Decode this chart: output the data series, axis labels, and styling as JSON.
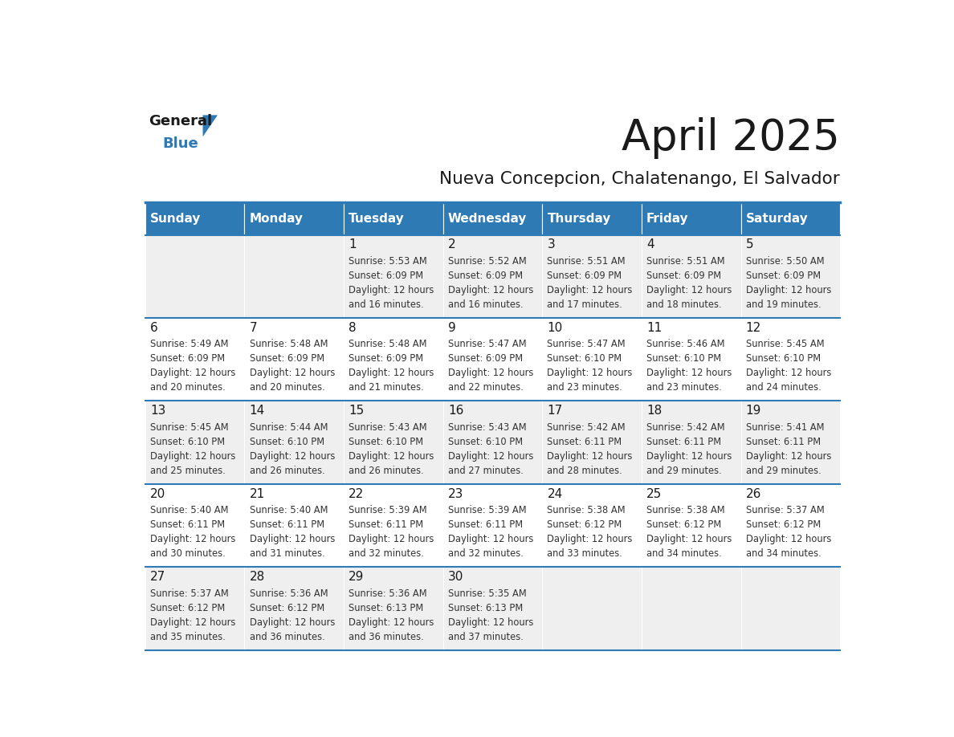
{
  "title": "April 2025",
  "subtitle": "Nueva Concepcion, Chalatenango, El Salvador",
  "header_bg_color": "#2E7AB5",
  "header_text_color": "#FFFFFF",
  "title_color": "#1a1a1a",
  "subtitle_color": "#1a1a1a",
  "grid_line_color": "#2E7AB5",
  "day_number_color": "#1a1a1a",
  "cell_text_color": "#333333",
  "days_of_week": [
    "Sunday",
    "Monday",
    "Tuesday",
    "Wednesday",
    "Thursday",
    "Friday",
    "Saturday"
  ],
  "weeks": [
    [
      {
        "day": "",
        "sunrise": "",
        "sunset": "",
        "daylight_line1": "",
        "daylight_line2": ""
      },
      {
        "day": "",
        "sunrise": "",
        "sunset": "",
        "daylight_line1": "",
        "daylight_line2": ""
      },
      {
        "day": "1",
        "sunrise": "5:53 AM",
        "sunset": "6:09 PM",
        "daylight_line1": "12 hours",
        "daylight_line2": "and 16 minutes."
      },
      {
        "day": "2",
        "sunrise": "5:52 AM",
        "sunset": "6:09 PM",
        "daylight_line1": "12 hours",
        "daylight_line2": "and 16 minutes."
      },
      {
        "day": "3",
        "sunrise": "5:51 AM",
        "sunset": "6:09 PM",
        "daylight_line1": "12 hours",
        "daylight_line2": "and 17 minutes."
      },
      {
        "day": "4",
        "sunrise": "5:51 AM",
        "sunset": "6:09 PM",
        "daylight_line1": "12 hours",
        "daylight_line2": "and 18 minutes."
      },
      {
        "day": "5",
        "sunrise": "5:50 AM",
        "sunset": "6:09 PM",
        "daylight_line1": "12 hours",
        "daylight_line2": "and 19 minutes."
      }
    ],
    [
      {
        "day": "6",
        "sunrise": "5:49 AM",
        "sunset": "6:09 PM",
        "daylight_line1": "12 hours",
        "daylight_line2": "and 20 minutes."
      },
      {
        "day": "7",
        "sunrise": "5:48 AM",
        "sunset": "6:09 PM",
        "daylight_line1": "12 hours",
        "daylight_line2": "and 20 minutes."
      },
      {
        "day": "8",
        "sunrise": "5:48 AM",
        "sunset": "6:09 PM",
        "daylight_line1": "12 hours",
        "daylight_line2": "and 21 minutes."
      },
      {
        "day": "9",
        "sunrise": "5:47 AM",
        "sunset": "6:09 PM",
        "daylight_line1": "12 hours",
        "daylight_line2": "and 22 minutes."
      },
      {
        "day": "10",
        "sunrise": "5:47 AM",
        "sunset": "6:10 PM",
        "daylight_line1": "12 hours",
        "daylight_line2": "and 23 minutes."
      },
      {
        "day": "11",
        "sunrise": "5:46 AM",
        "sunset": "6:10 PM",
        "daylight_line1": "12 hours",
        "daylight_line2": "and 23 minutes."
      },
      {
        "day": "12",
        "sunrise": "5:45 AM",
        "sunset": "6:10 PM",
        "daylight_line1": "12 hours",
        "daylight_line2": "and 24 minutes."
      }
    ],
    [
      {
        "day": "13",
        "sunrise": "5:45 AM",
        "sunset": "6:10 PM",
        "daylight_line1": "12 hours",
        "daylight_line2": "and 25 minutes."
      },
      {
        "day": "14",
        "sunrise": "5:44 AM",
        "sunset": "6:10 PM",
        "daylight_line1": "12 hours",
        "daylight_line2": "and 26 minutes."
      },
      {
        "day": "15",
        "sunrise": "5:43 AM",
        "sunset": "6:10 PM",
        "daylight_line1": "12 hours",
        "daylight_line2": "and 26 minutes."
      },
      {
        "day": "16",
        "sunrise": "5:43 AM",
        "sunset": "6:10 PM",
        "daylight_line1": "12 hours",
        "daylight_line2": "and 27 minutes."
      },
      {
        "day": "17",
        "sunrise": "5:42 AM",
        "sunset": "6:11 PM",
        "daylight_line1": "12 hours",
        "daylight_line2": "and 28 minutes."
      },
      {
        "day": "18",
        "sunrise": "5:42 AM",
        "sunset": "6:11 PM",
        "daylight_line1": "12 hours",
        "daylight_line2": "and 29 minutes."
      },
      {
        "day": "19",
        "sunrise": "5:41 AM",
        "sunset": "6:11 PM",
        "daylight_line1": "12 hours",
        "daylight_line2": "and 29 minutes."
      }
    ],
    [
      {
        "day": "20",
        "sunrise": "5:40 AM",
        "sunset": "6:11 PM",
        "daylight_line1": "12 hours",
        "daylight_line2": "and 30 minutes."
      },
      {
        "day": "21",
        "sunrise": "5:40 AM",
        "sunset": "6:11 PM",
        "daylight_line1": "12 hours",
        "daylight_line2": "and 31 minutes."
      },
      {
        "day": "22",
        "sunrise": "5:39 AM",
        "sunset": "6:11 PM",
        "daylight_line1": "12 hours",
        "daylight_line2": "and 32 minutes."
      },
      {
        "day": "23",
        "sunrise": "5:39 AM",
        "sunset": "6:11 PM",
        "daylight_line1": "12 hours",
        "daylight_line2": "and 32 minutes."
      },
      {
        "day": "24",
        "sunrise": "5:38 AM",
        "sunset": "6:12 PM",
        "daylight_line1": "12 hours",
        "daylight_line2": "and 33 minutes."
      },
      {
        "day": "25",
        "sunrise": "5:38 AM",
        "sunset": "6:12 PM",
        "daylight_line1": "12 hours",
        "daylight_line2": "and 34 minutes."
      },
      {
        "day": "26",
        "sunrise": "5:37 AM",
        "sunset": "6:12 PM",
        "daylight_line1": "12 hours",
        "daylight_line2": "and 34 minutes."
      }
    ],
    [
      {
        "day": "27",
        "sunrise": "5:37 AM",
        "sunset": "6:12 PM",
        "daylight_line1": "12 hours",
        "daylight_line2": "and 35 minutes."
      },
      {
        "day": "28",
        "sunrise": "5:36 AM",
        "sunset": "6:12 PM",
        "daylight_line1": "12 hours",
        "daylight_line2": "and 36 minutes."
      },
      {
        "day": "29",
        "sunrise": "5:36 AM",
        "sunset": "6:13 PM",
        "daylight_line1": "12 hours",
        "daylight_line2": "and 36 minutes."
      },
      {
        "day": "30",
        "sunrise": "5:35 AM",
        "sunset": "6:13 PM",
        "daylight_line1": "12 hours",
        "daylight_line2": "and 37 minutes."
      },
      {
        "day": "",
        "sunrise": "",
        "sunset": "",
        "daylight_line1": "",
        "daylight_line2": ""
      },
      {
        "day": "",
        "sunrise": "",
        "sunset": "",
        "daylight_line1": "",
        "daylight_line2": ""
      },
      {
        "day": "",
        "sunrise": "",
        "sunset": "",
        "daylight_line1": "",
        "daylight_line2": ""
      }
    ]
  ],
  "logo_triangle_color": "#2E7AB5",
  "logo_general_color": "#1a1a1a",
  "logo_blue_color": "#2E7AB5"
}
